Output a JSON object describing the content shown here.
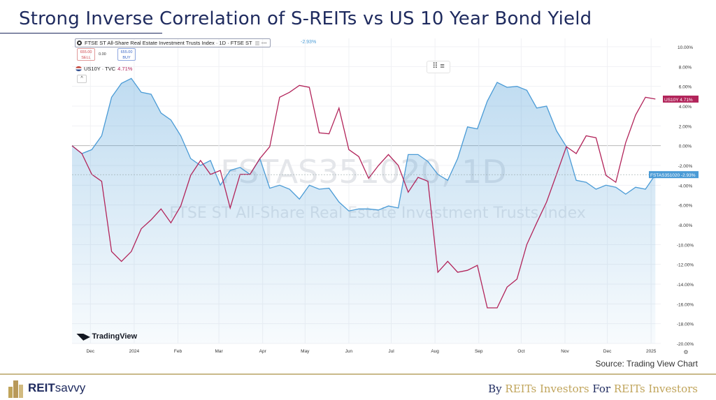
{
  "header": {
    "title": "Strong Inverse Correlation of S-REITs vs US 10 Year Bond Yield"
  },
  "legend": {
    "main_symbol": "FTSE ST All-Share Real Estate Investment Trusts Index · 1D · FTSE ST",
    "main_change": "-2.93%",
    "sell_price": "655.00",
    "sell_label": "SELL",
    "spread": "0.00",
    "buy_price": "655.00",
    "buy_label": "BUY",
    "compare_symbol": "US10Y · TVC",
    "compare_change": "4.71%",
    "collapse_icon": "^",
    "menu_icon": "⠿ ≡"
  },
  "watermark": {
    "symbol": "FSTAS351020, 1D",
    "name": "FTSE ST All-Share Real Estate Investment Trusts Index"
  },
  "branding": {
    "tradingview": "TradingView",
    "settings_icon": "⚙"
  },
  "source": "Source: Trading View Chart",
  "footer": {
    "brand_bold": "REIT",
    "brand_light": "savvy",
    "tag_1": "By ",
    "tag_2": "REITs Investors",
    "tag_3": " For ",
    "tag_4": "REITs Investors"
  },
  "colors": {
    "fstas": "#4a9bd6",
    "us10y": "#b2245a",
    "title": "#1e2a5e",
    "gold": "#c0a45a"
  },
  "chart_data": {
    "type": "line",
    "title": "",
    "xlabel": "",
    "ylabel": "",
    "ylim": [
      -20,
      10
    ],
    "y_ticks": [
      "10.00%",
      "8.00%",
      "6.00%",
      "4.00%",
      "2.00%",
      "0.00%",
      "-2.00%",
      "-4.00%",
      "-6.00%",
      "-8.00%",
      "-10.00%",
      "-12.00%",
      "-14.00%",
      "-16.00%",
      "-18.00%",
      "-20.00%"
    ],
    "x_ticks": [
      "Dec",
      "2024",
      "Feb",
      "Mar",
      "Apr",
      "May",
      "Jun",
      "Jul",
      "Aug",
      "Sep",
      "Oct",
      "Nov",
      "Dec",
      "2025"
    ],
    "x_tick_dates": [
      "2023-12-01",
      "2024-01-01",
      "2024-02-01",
      "2024-03-01",
      "2024-04-01",
      "2024-05-01",
      "2024-06-01",
      "2024-07-01",
      "2024-08-01",
      "2024-09-01",
      "2024-10-01",
      "2024-11-01",
      "2024-12-01",
      "2025-01-01"
    ],
    "grid": true,
    "x": [
      "2023-11-18",
      "2023-11-25",
      "2023-12-02",
      "2023-12-09",
      "2023-12-16",
      "2023-12-23",
      "2023-12-30",
      "2024-01-06",
      "2024-01-13",
      "2024-01-20",
      "2024-01-27",
      "2024-02-03",
      "2024-02-10",
      "2024-02-17",
      "2024-02-24",
      "2024-03-02",
      "2024-03-09",
      "2024-03-16",
      "2024-03-23",
      "2024-03-30",
      "2024-04-06",
      "2024-04-13",
      "2024-04-20",
      "2024-04-27",
      "2024-05-04",
      "2024-05-11",
      "2024-05-18",
      "2024-05-25",
      "2024-06-01",
      "2024-06-08",
      "2024-06-15",
      "2024-06-22",
      "2024-06-29",
      "2024-07-06",
      "2024-07-13",
      "2024-07-20",
      "2024-07-27",
      "2024-08-03",
      "2024-08-10",
      "2024-08-17",
      "2024-08-24",
      "2024-08-31",
      "2024-09-07",
      "2024-09-14",
      "2024-09-21",
      "2024-09-28",
      "2024-10-05",
      "2024-10-12",
      "2024-10-19",
      "2024-10-26",
      "2024-11-02",
      "2024-11-09",
      "2024-11-16",
      "2024-11-23",
      "2024-11-30",
      "2024-12-07",
      "2024-12-14",
      "2024-12-21",
      "2024-12-28",
      "2025-01-04"
    ],
    "series": [
      {
        "name": "FSTAS351020",
        "last_label": "-2.93%",
        "color": "#4a9bd6",
        "values": [
          0.0,
          -0.8,
          -0.4,
          1.0,
          4.9,
          6.3,
          6.8,
          5.4,
          5.2,
          3.3,
          2.6,
          1.0,
          -1.3,
          -2.0,
          -1.5,
          -4.0,
          -2.5,
          -2.2,
          -2.9,
          -1.3,
          -4.3,
          -4.0,
          -4.4,
          -5.4,
          -4.0,
          -4.4,
          -4.3,
          -5.7,
          -6.6,
          -6.4,
          -6.4,
          -6.5,
          -6.1,
          -6.3,
          -0.9,
          -0.9,
          -1.6,
          -2.9,
          -3.5,
          -1.3,
          1.9,
          1.7,
          4.5,
          6.4,
          5.9,
          6.0,
          5.6,
          3.8,
          4.0,
          1.5,
          -0.1,
          -3.5,
          -3.7,
          -4.4,
          -4.0,
          -4.2,
          -4.9,
          -4.2,
          -4.4,
          -2.93
        ]
      },
      {
        "name": "US10Y",
        "last_label": "4.71%",
        "color": "#b2245a",
        "values": [
          0.0,
          -0.8,
          -2.9,
          -3.6,
          -10.7,
          -11.7,
          -10.7,
          -8.4,
          -7.5,
          -6.4,
          -7.8,
          -6.1,
          -3.0,
          -1.5,
          -2.9,
          -2.5,
          -6.3,
          -2.9,
          -2.9,
          -1.3,
          -0.1,
          4.9,
          5.4,
          6.1,
          5.9,
          1.3,
          1.2,
          3.8,
          -0.4,
          -1.1,
          -3.3,
          -2.0,
          -0.9,
          -2.0,
          -4.7,
          -3.2,
          -3.6,
          -12.8,
          -11.7,
          -12.8,
          -12.6,
          -12.1,
          -16.4,
          -16.4,
          -14.3,
          -13.5,
          -10.0,
          -7.8,
          -5.7,
          -2.9,
          -0.1,
          -0.8,
          1.0,
          0.8,
          -3.0,
          -3.7,
          0.3,
          3.1,
          4.9,
          4.71
        ]
      }
    ]
  }
}
